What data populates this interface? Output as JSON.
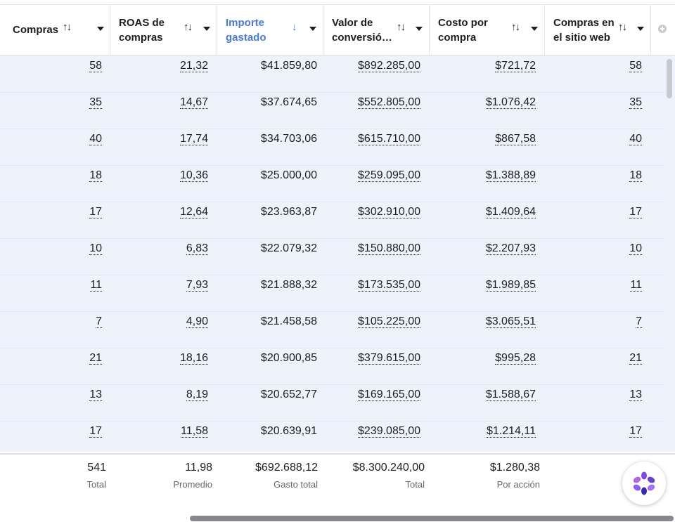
{
  "columns": [
    {
      "label": "Compras",
      "sort_icon": "sort-both-icon",
      "active": false
    },
    {
      "label_line1": "ROAS de",
      "label_line2": "compras",
      "sort_icon": "sort-both-icon",
      "active": false
    },
    {
      "label_line1": "Importe",
      "label_line2": "gastado",
      "sort_icon": "sort-down-icon",
      "active": true
    },
    {
      "label_line1": "Valor de",
      "label_line2": "conversió…",
      "sort_icon": "sort-both-icon",
      "active": false
    },
    {
      "label_line1": "Costo por",
      "label_line2": "compra",
      "sort_icon": "sort-both-icon",
      "active": false
    },
    {
      "label_line1": "Compras en",
      "label_line2": "el sitio web",
      "sort_icon": "sort-both-icon",
      "active": false
    }
  ],
  "sort_glyphs": {
    "both": "↑↓",
    "down": "↓"
  },
  "rows": [
    [
      "58",
      "21,32",
      "$41.859,80",
      "$892.285,00",
      "$721,72",
      "58"
    ],
    [
      "35",
      "14,67",
      "$37.674,65",
      "$552.805,00",
      "$1.076,42",
      "35"
    ],
    [
      "40",
      "17,74",
      "$34.703,06",
      "$615.710,00",
      "$867,58",
      "40"
    ],
    [
      "18",
      "10,36",
      "$25.000,00",
      "$259.095,00",
      "$1.388,89",
      "18"
    ],
    [
      "17",
      "12,64",
      "$23.963,87",
      "$302.910,00",
      "$1.409,64",
      "17"
    ],
    [
      "10",
      "6,83",
      "$22.079,32",
      "$150.880,00",
      "$2.207,93",
      "10"
    ],
    [
      "11",
      "7,93",
      "$21.888,32",
      "$173.535,00",
      "$1.989,85",
      "11"
    ],
    [
      "7",
      "4,90",
      "$21.458,58",
      "$105.225,00",
      "$3.065,51",
      "7"
    ],
    [
      "21",
      "18,16",
      "$20.900,85",
      "$379.615,00",
      "$995,28",
      "21"
    ],
    [
      "13",
      "8,19",
      "$20.652,77",
      "$169.165,00",
      "$1.588,67",
      "13"
    ],
    [
      "17",
      "11,58",
      "$20.639,91",
      "$239.085,00",
      "$1.214,11",
      "17"
    ]
  ],
  "totals": [
    {
      "value": "541",
      "label": "Total"
    },
    {
      "value": "11,98",
      "label": "Promedio"
    },
    {
      "value": "$692.688,12",
      "label": "Gasto total"
    },
    {
      "value": "$8.300.240,00",
      "label": "Total"
    },
    {
      "value": "$1.280,38",
      "label": "Por acción"
    }
  ],
  "colors": {
    "accent": "#4a7bd0",
    "row_bg": "#edf2fd"
  },
  "assistant_icon": "ai-assistant-icon"
}
